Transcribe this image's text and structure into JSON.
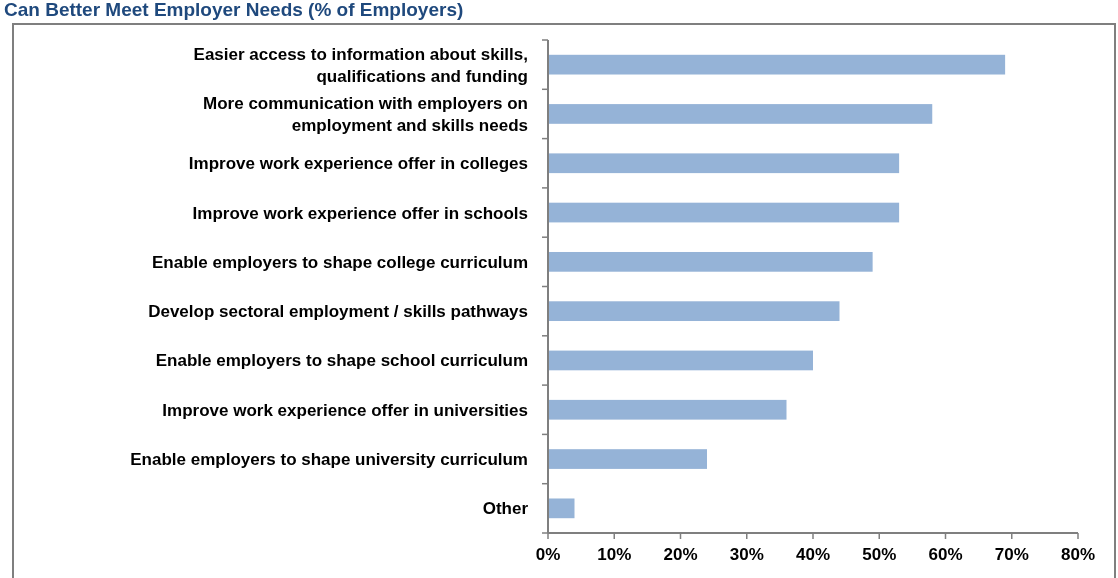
{
  "chart_data": {
    "type": "bar",
    "orientation": "horizontal",
    "title": "Can Better Meet Employer Needs (% of Employers)",
    "categories": [
      "Easier access to information about skills, qualifications and funding",
      "More communication with employers on employment and skills needs",
      "Improve work experience offer in colleges",
      "Improve work experience offer in schools",
      "Enable employers to shape college curriculum",
      "Develop sectoral employment / skills pathways",
      "Enable employers to shape school curriculum",
      "Improve work experience offer in universities",
      "Enable employers to shape university curriculum",
      "Other"
    ],
    "values": [
      69,
      58,
      53,
      53,
      49,
      44,
      40,
      36,
      24,
      4
    ],
    "color": "#95b3d7",
    "xlim": [
      0,
      80
    ],
    "xticks": [
      {
        "value": 0,
        "label": "0%"
      },
      {
        "value": 10,
        "label": "10%"
      },
      {
        "value": 20,
        "label": "20%"
      },
      {
        "value": 30,
        "label": "30%"
      },
      {
        "value": 40,
        "label": "40%"
      },
      {
        "value": 50,
        "label": "50%"
      },
      {
        "value": 60,
        "label": "60%"
      },
      {
        "value": 70,
        "label": "70%"
      },
      {
        "value": 80,
        "label": "80%"
      }
    ],
    "grid": false
  }
}
